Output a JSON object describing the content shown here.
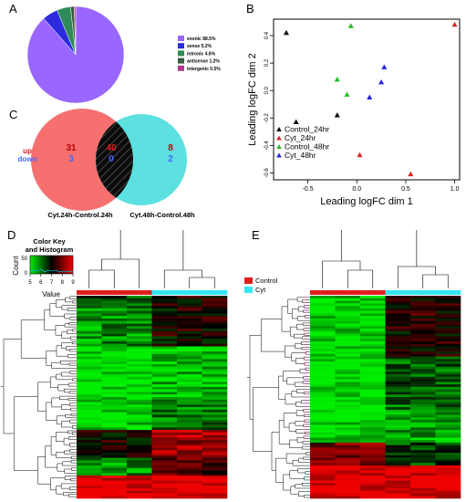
{
  "panels": {
    "a": "A",
    "b": "B",
    "c": "C",
    "d": "D",
    "e": "E"
  },
  "chart_data": [
    {
      "type": "pie",
      "categories": [
        "exonic 88.5%",
        "sense 5.2%",
        "intronic 4.6%",
        "antisense 1.2%",
        "intergenic 0.5%"
      ],
      "values": [
        88.5,
        5.2,
        4.6,
        1.2,
        0.5
      ],
      "colors": [
        "#9966ff",
        "#2b2bdd",
        "#2e8b57",
        "#3a5a40",
        "#b03a8a"
      ],
      "legend": "right"
    },
    {
      "type": "scatter",
      "xlabel": "Leading logFC dim 1",
      "ylabel": "Leading logFC dim 2",
      "xlim": [
        -0.85,
        1.05
      ],
      "ylim": [
        -0.65,
        0.52
      ],
      "xticks": [
        -0.5,
        0.0,
        0.5,
        1.0
      ],
      "xtick_labels": [
        "-0.5",
        "0.0",
        "0.5",
        "1.0"
      ],
      "yticks": [
        -0.6,
        -0.4,
        -0.2,
        0.0,
        0.2,
        0.4
      ],
      "ytick_labels": [
        "-0.6",
        "-0.4",
        "-0.2",
        "0.0",
        "0.2",
        "0.4"
      ],
      "legend": "bottom-left",
      "series": [
        {
          "name": "Control_24hr",
          "color": "#000000",
          "x": [
            -0.72,
            -0.62,
            -0.2
          ],
          "y": [
            0.42,
            -0.23,
            -0.18
          ]
        },
        {
          "name": "Cyt_24hr",
          "color": "#e02020",
          "x": [
            1.0,
            0.03,
            0.55
          ],
          "y": [
            0.48,
            -0.47,
            -0.61
          ]
        },
        {
          "name": "Control_48hr",
          "color": "#22bb22",
          "x": [
            -0.06,
            -0.2,
            -0.1
          ],
          "y": [
            0.47,
            0.08,
            -0.03
          ]
        },
        {
          "name": "Cyt_48hr",
          "color": "#2222dd",
          "x": [
            0.28,
            0.25,
            0.13
          ],
          "y": [
            0.17,
            0.06,
            -0.05
          ]
        }
      ]
    },
    {
      "type": "venn",
      "sets": [
        {
          "label": "Cyt.24h-Control.24h",
          "up": "31",
          "down": "3",
          "color": "#f77070"
        },
        {
          "label": "Cyt.48h-Control.48h",
          "up": "8",
          "down": "2",
          "color": "#5ce0e0"
        }
      ],
      "overlap": {
        "up": "40",
        "down": "0"
      },
      "legend_up": "up",
      "legend_down": "down"
    }
  ],
  "color_key": {
    "title_line1": "Color Key",
    "title_line2": "and Histogram",
    "ylabel": "Count",
    "xlabel": "Value",
    "yticks": [
      "0",
      "50"
    ],
    "xticks": [
      "5",
      "6",
      "7",
      "8",
      "9"
    ]
  },
  "group_legend": {
    "items": [
      {
        "label": "Control",
        "color": "#e11d1d"
      },
      {
        "label": "Cyt",
        "color": "#33e6f0"
      }
    ]
  },
  "heatmap_colors": {
    "low": "#00ee00",
    "mid": "#000000",
    "high": "#ee0000"
  }
}
